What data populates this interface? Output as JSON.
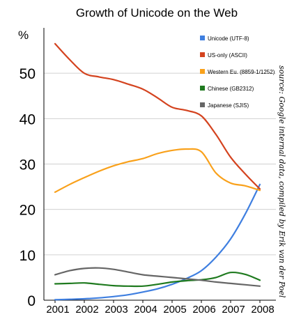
{
  "chart_data": {
    "type": "line",
    "title": "Growth of Unicode on the Web",
    "y_unit": "%",
    "source": "source: Google internal data, compiled by Erik van der Poel",
    "x": [
      2001,
      2001.5,
      2002,
      2002.5,
      2003,
      2003.5,
      2004,
      2004.5,
      2005,
      2005.5,
      2006,
      2006.5,
      2007,
      2007.5,
      2008
    ],
    "x_ticks": [
      "2001",
      "2002",
      "2003",
      "2004",
      "2005",
      "2006",
      "2007",
      "2008"
    ],
    "ylim": [
      0,
      60
    ],
    "y_ticks": [
      "0",
      "10",
      "20",
      "30",
      "40",
      "50"
    ],
    "legend_position": "top-right",
    "series": [
      {
        "name": "Unicode (UTF-8)",
        "color": "#3f7fe0",
        "values": [
          0.1,
          0.2,
          0.3,
          0.5,
          0.8,
          1.2,
          1.8,
          2.5,
          3.5,
          4.8,
          6.5,
          9.5,
          13.5,
          19.0,
          25.5
        ]
      },
      {
        "name": "US-only (ASCII)",
        "color": "#d4431f",
        "values": [
          56.5,
          53.0,
          50.0,
          49.2,
          48.6,
          47.6,
          46.5,
          44.6,
          42.5,
          41.8,
          40.6,
          36.5,
          31.5,
          27.8,
          24.5
        ]
      },
      {
        "name": "Western Eu. (8859-1/1252)",
        "color": "#f9a11b",
        "values": [
          23.8,
          25.5,
          27.0,
          28.4,
          29.6,
          30.5,
          31.2,
          32.3,
          33.0,
          33.3,
          32.7,
          28.0,
          25.8,
          25.2,
          24.2
        ]
      },
      {
        "name": "Chinese (GB2312)",
        "color": "#1f7a1f",
        "values": [
          3.6,
          3.7,
          3.8,
          3.5,
          3.2,
          3.1,
          3.1,
          3.5,
          4.0,
          4.3,
          4.5,
          5.0,
          6.1,
          5.7,
          4.4
        ]
      },
      {
        "name": "Japanese (SJIS)",
        "color": "#666666",
        "values": [
          5.6,
          6.5,
          7.0,
          7.1,
          6.8,
          6.2,
          5.6,
          5.3,
          5.0,
          4.7,
          4.4,
          4.0,
          3.7,
          3.4,
          3.1
        ]
      }
    ]
  }
}
